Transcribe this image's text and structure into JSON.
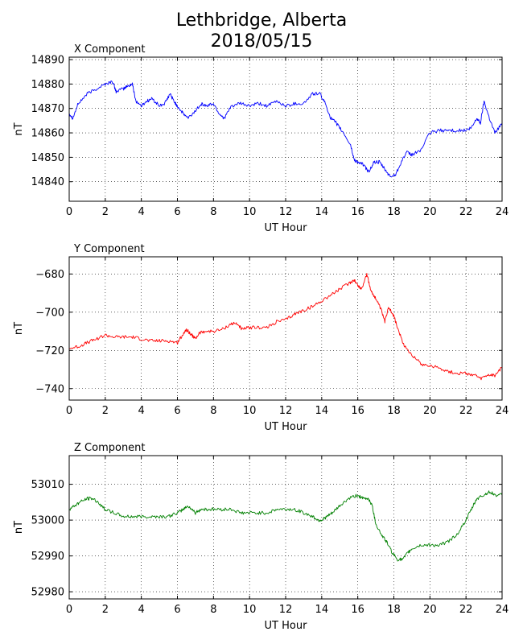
{
  "figure": {
    "title_line1": "Lethbridge, Alberta",
    "title_line2": "2018/05/15"
  },
  "chart_data": [
    {
      "type": "line",
      "title": "X Component",
      "xlabel": "UT Hour",
      "ylabel": "nT",
      "xlim": [
        0,
        24
      ],
      "ylim": [
        14832,
        14891
      ],
      "xticks": [
        0,
        2,
        4,
        6,
        8,
        10,
        12,
        14,
        16,
        18,
        20,
        22,
        24
      ],
      "yticks": [
        14840,
        14850,
        14860,
        14870,
        14880,
        14890
      ],
      "grid": true,
      "color": "#0000ff",
      "x": [
        0,
        0.2,
        0.5,
        1.0,
        1.5,
        2.0,
        2.4,
        2.6,
        3.0,
        3.2,
        3.5,
        3.7,
        4.0,
        4.3,
        4.6,
        5.0,
        5.3,
        5.6,
        5.8,
        6.0,
        6.3,
        6.6,
        7.0,
        7.3,
        7.6,
        8.0,
        8.3,
        8.6,
        9.0,
        9.5,
        10.0,
        10.5,
        11.0,
        11.5,
        12.0,
        12.5,
        13.0,
        13.5,
        13.9,
        14.2,
        14.5,
        14.8,
        15.2,
        15.6,
        15.8,
        16.0,
        16.3,
        16.6,
        16.9,
        17.2,
        17.5,
        17.8,
        18.1,
        18.4,
        18.7,
        19.0,
        19.5,
        20.0,
        20.5,
        21.0,
        21.5,
        22.0,
        22.3,
        22.6,
        22.8,
        23.0,
        23.3,
        23.6,
        24.0
      ],
      "y": [
        14868,
        14866,
        14872,
        14876,
        14878,
        14880,
        14881,
        14877,
        14878,
        14879,
        14880,
        14873,
        14871,
        14873,
        14874,
        14871,
        14872,
        14876,
        14873,
        14871,
        14868,
        14866,
        14869,
        14872,
        14871,
        14872,
        14868,
        14866,
        14871,
        14872,
        14871,
        14872,
        14871,
        14873,
        14871,
        14872,
        14872,
        14876,
        14876,
        14872,
        14866,
        14864,
        14860,
        14855,
        14849,
        14848,
        14847,
        14844,
        14848,
        14848,
        14845,
        14842,
        14843,
        14848,
        14852,
        14851,
        14853,
        14860,
        14861,
        14861,
        14861,
        14861,
        14862,
        14866,
        14864,
        14873,
        14866,
        14860,
        14864
      ]
    },
    {
      "type": "line",
      "title": "Y Component",
      "xlabel": "UT Hour",
      "ylabel": "nT",
      "xlim": [
        0,
        24
      ],
      "ylim": [
        -746,
        -671
      ],
      "xticks": [
        0,
        2,
        4,
        6,
        8,
        10,
        12,
        14,
        16,
        18,
        20,
        22,
        24
      ],
      "yticks": [
        -680,
        -700,
        -720,
        -740
      ],
      "grid": true,
      "color": "#ff0000",
      "x": [
        0,
        0.5,
        1.0,
        1.5,
        2.0,
        2.5,
        3.0,
        3.5,
        4.0,
        4.5,
        5.0,
        5.5,
        6.0,
        6.2,
        6.5,
        6.8,
        7.0,
        7.2,
        7.5,
        8.0,
        8.5,
        9.0,
        9.3,
        9.6,
        10.0,
        10.5,
        11.0,
        11.5,
        12.0,
        12.5,
        13.0,
        13.5,
        14.0,
        14.5,
        15.0,
        15.5,
        15.8,
        16.0,
        16.2,
        16.5,
        16.7,
        17.0,
        17.3,
        17.5,
        17.7,
        18.0,
        18.3,
        18.6,
        19.0,
        19.5,
        20.0,
        20.5,
        21.0,
        21.5,
        22.0,
        22.5,
        22.8,
        23.2,
        23.6,
        24.0
      ],
      "y": [
        -719,
        -718,
        -716,
        -714,
        -712,
        -713,
        -713,
        -713,
        -714,
        -715,
        -715,
        -715,
        -716,
        -713,
        -709,
        -712,
        -714,
        -711,
        -710,
        -710,
        -709,
        -706,
        -706,
        -709,
        -708,
        -708,
        -708,
        -705,
        -704,
        -701,
        -699,
        -697,
        -694,
        -691,
        -688,
        -685,
        -683,
        -686,
        -688,
        -680,
        -688,
        -693,
        -699,
        -705,
        -697,
        -702,
        -711,
        -718,
        -722,
        -727,
        -728,
        -729,
        -731,
        -732,
        -732,
        -733,
        -735,
        -733,
        -733,
        -729
      ]
    },
    {
      "type": "line",
      "title": "Z Component",
      "xlabel": "UT Hour",
      "ylabel": "nT",
      "xlim": [
        0,
        24
      ],
      "ylim": [
        52978,
        53018
      ],
      "xticks": [
        0,
        2,
        4,
        6,
        8,
        10,
        12,
        14,
        16,
        18,
        20,
        22,
        24
      ],
      "yticks": [
        52980,
        52990,
        53000,
        53010
      ],
      "grid": true,
      "color": "#008000",
      "x": [
        0,
        0.3,
        0.6,
        1.0,
        1.3,
        1.6,
        2.0,
        2.5,
        3.0,
        3.5,
        4.0,
        4.5,
        5.0,
        5.5,
        6.0,
        6.3,
        6.6,
        7.0,
        7.3,
        7.6,
        8.0,
        8.5,
        9.0,
        9.5,
        10.0,
        10.5,
        11.0,
        11.5,
        12.0,
        12.5,
        13.0,
        13.5,
        13.8,
        14.0,
        14.3,
        14.6,
        15.0,
        15.5,
        16.0,
        16.3,
        16.6,
        16.8,
        17.0,
        17.3,
        17.6,
        17.9,
        18.2,
        18.5,
        18.8,
        19.0,
        19.5,
        20.0,
        20.5,
        21.0,
        21.5,
        22.0,
        22.3,
        22.6,
        23.0,
        23.3,
        23.6,
        24.0
      ],
      "y": [
        53003,
        53004,
        53005,
        53006,
        53006,
        53005,
        53003,
        53002,
        53001,
        53001,
        53001,
        53001,
        53001,
        53001,
        53002,
        53003,
        53004,
        53002,
        53003,
        53003,
        53003,
        53003,
        53003,
        53002,
        53002,
        53002,
        53002,
        53003,
        53003,
        53003,
        53002,
        53001,
        53000,
        53000,
        53001,
        53002,
        53004,
        53006,
        53007,
        53006,
        53006,
        53004,
        52999,
        52996,
        52994,
        52991,
        52989,
        52989,
        52991,
        52992,
        52993,
        52993,
        52993,
        52994,
        52996,
        53000,
        53003,
        53006,
        53007,
        53008,
        53007,
        53007
      ]
    }
  ]
}
